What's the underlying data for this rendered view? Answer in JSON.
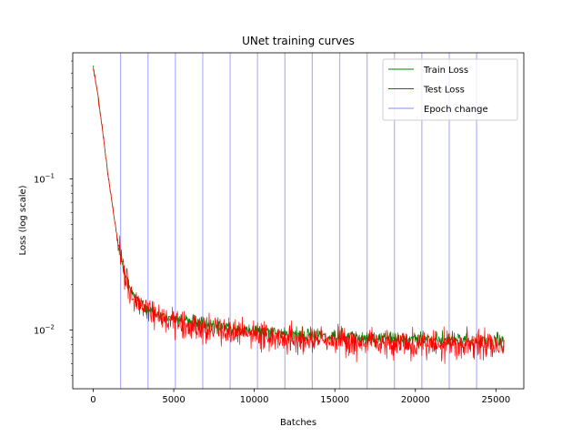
{
  "chart_data": {
    "type": "line",
    "title": "UNet training curves",
    "xlabel": "Batches",
    "ylabel": "Loss (log scale)",
    "yscale": "log",
    "xlim": [
      -1270,
      26730
    ],
    "ylim": [
      0.0041,
      0.68
    ],
    "grid": false,
    "legend_position": "top-right",
    "x_ticks": [
      {
        "value": 0,
        "label": "0"
      },
      {
        "value": 5000,
        "label": "5000"
      },
      {
        "value": 10000,
        "label": "10000"
      },
      {
        "value": 15000,
        "label": "15000"
      },
      {
        "value": 20000,
        "label": "20000"
      },
      {
        "value": 25000,
        "label": "25000"
      }
    ],
    "y_ticks": [
      {
        "value": 0.01,
        "base": "10",
        "exp": "−2"
      },
      {
        "value": 0.1,
        "base": "10",
        "exp": "−1"
      }
    ],
    "y_minor_ticks": [
      0.005,
      0.006,
      0.007,
      0.008,
      0.009,
      0.02,
      0.03,
      0.04,
      0.05,
      0.06,
      0.07,
      0.08,
      0.09,
      0.2,
      0.3,
      0.4,
      0.5,
      0.6
    ],
    "epoch_changes": [
      1700,
      3400,
      5100,
      6800,
      8500,
      10200,
      11900,
      13600,
      15300,
      17000,
      18700,
      20400,
      22100,
      23800
    ],
    "series": [
      {
        "name": "Train Loss",
        "color": "#008000",
        "key_points": {
          "x": [
            0,
            300,
            600,
            900,
            1200,
            1500,
            1800,
            2200,
            2600,
            3000,
            3500,
            4000,
            5000,
            6000,
            8000,
            10000,
            12000,
            14000,
            16000,
            18000,
            20000,
            22000,
            24000,
            25500
          ],
          "y": [
            0.55,
            0.35,
            0.2,
            0.11,
            0.065,
            0.04,
            0.027,
            0.02,
            0.016,
            0.0145,
            0.0135,
            0.0128,
            0.012,
            0.0113,
            0.0105,
            0.0099,
            0.0095,
            0.0092,
            0.009,
            0.0088,
            0.0087,
            0.0086,
            0.0085,
            0.0085
          ]
        },
        "noise": 0.055
      },
      {
        "name": "Test Loss",
        "color": "#ff0000",
        "key_points": {
          "x": [
            0,
            300,
            600,
            900,
            1200,
            1500,
            1800,
            2200,
            2600,
            3000,
            3500,
            4000,
            5000,
            6000,
            8000,
            10000,
            12000,
            14000,
            16000,
            18000,
            20000,
            22000,
            24000,
            25500
          ],
          "y": [
            0.55,
            0.35,
            0.2,
            0.11,
            0.065,
            0.04,
            0.027,
            0.019,
            0.0155,
            0.014,
            0.013,
            0.0122,
            0.0113,
            0.0106,
            0.0098,
            0.0092,
            0.0088,
            0.0086,
            0.0084,
            0.0082,
            0.0081,
            0.008,
            0.0079,
            0.0079
          ]
        },
        "noise": 0.11
      }
    ],
    "legend": [
      {
        "label": "Train Loss",
        "color": "#008000"
      },
      {
        "label": "Test Loss",
        "color": "#ff0000"
      },
      {
        "label": "Epoch change",
        "color": "#b0b0ff"
      }
    ]
  }
}
